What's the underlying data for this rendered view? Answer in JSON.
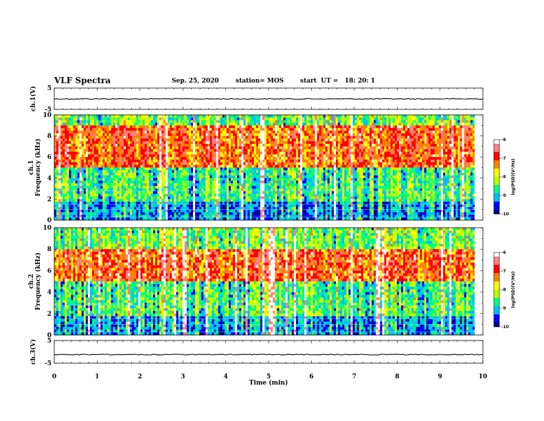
{
  "header": {
    "title": "VLF Spectra",
    "date": "Sep. 25, 2020",
    "station": "station= MOS",
    "start": "start  UT =   18: 20: 1"
  },
  "chart_data": {
    "type": "heatmap",
    "xlabel": "Time  (min)",
    "xlim": [
      0,
      10
    ],
    "x_ticks": [
      "0",
      "1",
      "2",
      "3",
      "4",
      "5",
      "6",
      "7",
      "8",
      "9",
      "10"
    ],
    "panels": [
      {
        "name": "ch1-waveform",
        "ylabel": "ch.1(V)",
        "ylim": [
          -5,
          5
        ],
        "y_ticks": [
          "5",
          "-5"
        ],
        "level": -0.1
      },
      {
        "name": "ch1-spectrogram",
        "ylabel": "ch.1\nFrequency  (kHz)",
        "ylim": [
          0,
          10
        ],
        "y_ticks": [
          "0",
          "2",
          "4",
          "6",
          "8",
          "10"
        ],
        "intense_band_khz": [
          5.0,
          9.0
        ],
        "colorbar": {
          "label": "log(PSD)(V²/Hz)",
          "range": [
            -10,
            -6
          ],
          "ticks": [
            "-6",
            "-7",
            "-8",
            "-9",
            "-10"
          ]
        }
      },
      {
        "name": "ch2-spectrogram",
        "ylabel": "ch.2\nFrequency  (kHz)",
        "ylim": [
          0,
          10
        ],
        "y_ticks": [
          "0",
          "2",
          "4",
          "6",
          "8",
          "10"
        ],
        "intense_band_khz": [
          5.0,
          8.0
        ],
        "colorbar": {
          "label": "log(PSD)(V²/Hz)",
          "range": [
            -10,
            -6
          ],
          "ticks": [
            "-6",
            "-7",
            "-8",
            "-9",
            "-10"
          ]
        }
      },
      {
        "name": "ch3-waveform",
        "ylabel": "ch.3(V)",
        "ylim": [
          -5,
          5
        ],
        "y_ticks": [
          "5",
          "-5"
        ],
        "level": -1.2
      }
    ],
    "colorscale": [
      "#000080",
      "#0000ff",
      "#00bfff",
      "#00ff80",
      "#c0ff00",
      "#ffff00",
      "#ff8000",
      "#ff0000",
      "#ff8080",
      "#ffffff"
    ]
  }
}
